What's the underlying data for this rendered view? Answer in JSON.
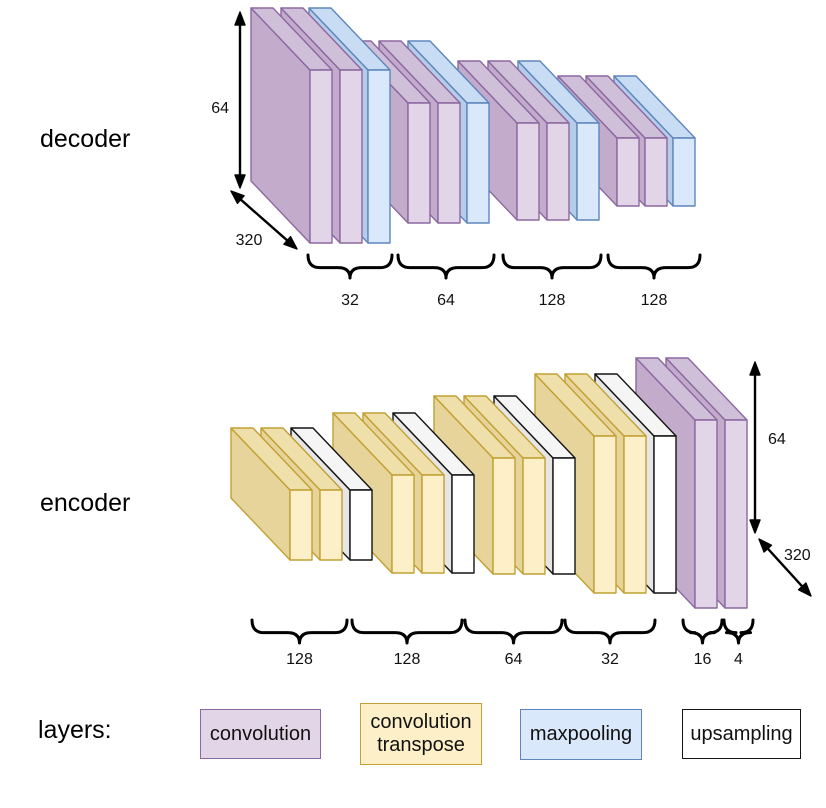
{
  "page": {
    "background": "#ffffff"
  },
  "decoder": {
    "label": "decoder",
    "dims": {
      "height": "64",
      "depth": "320"
    },
    "groups": [
      {
        "channels": [
          "32"
        ],
        "layers": [
          "convolution",
          "convolution",
          "maxpooling"
        ]
      },
      {
        "channels": [
          "64"
        ],
        "layers": [
          "convolution",
          "convolution",
          "maxpooling"
        ]
      },
      {
        "channels": [
          "128"
        ],
        "layers": [
          "convolution",
          "convolution",
          "maxpooling"
        ]
      },
      {
        "channels": [
          "128"
        ],
        "layers": [
          "convolution",
          "convolution",
          "maxpooling"
        ]
      }
    ]
  },
  "encoder": {
    "label": "encoder",
    "dims": {
      "height": "64",
      "depth": "320"
    },
    "groups": [
      {
        "channels": [
          "128"
        ],
        "layers": [
          "convolution_transpose",
          "convolution_transpose",
          "upsampling"
        ]
      },
      {
        "channels": [
          "128"
        ],
        "layers": [
          "convolution_transpose",
          "convolution_transpose",
          "upsampling"
        ]
      },
      {
        "channels": [
          "64"
        ],
        "layers": [
          "convolution_transpose",
          "convolution_transpose",
          "upsampling"
        ]
      },
      {
        "channels": [
          "32"
        ],
        "layers": [
          "convolution_transpose",
          "convolution_transpose",
          "upsampling"
        ]
      },
      {
        "channels": [
          "16",
          "4"
        ],
        "layers": [
          "convolution",
          "convolution"
        ]
      }
    ]
  },
  "legend": {
    "label": "layers:",
    "items": [
      {
        "type": "convolution",
        "lines": [
          "convolution"
        ]
      },
      {
        "type": "convolution_transpose",
        "lines": [
          "convolution",
          "transpose"
        ]
      },
      {
        "type": "maxpooling",
        "lines": [
          "maxpooling"
        ]
      },
      {
        "type": "upsampling",
        "lines": [
          "upsampling"
        ]
      }
    ]
  },
  "palette": {
    "convolution": {
      "front": "#e1d5e7",
      "top": "#d0bfd8",
      "side": "#c2abcb",
      "stroke": "#8c68a0"
    },
    "convolution_transpose": {
      "front": "#fdf0c8",
      "top": "#eedfab",
      "side": "#e6d49a",
      "stroke": "#c2a033"
    },
    "maxpooling": {
      "front": "#dae8fc",
      "top": "#c8dcf4",
      "side": "#b6cdea",
      "stroke": "#5e86bd"
    },
    "upsampling": {
      "front": "#ffffff",
      "top": "#f5f5f5",
      "side": "#e6e6e6",
      "stroke": "#141414"
    }
  }
}
